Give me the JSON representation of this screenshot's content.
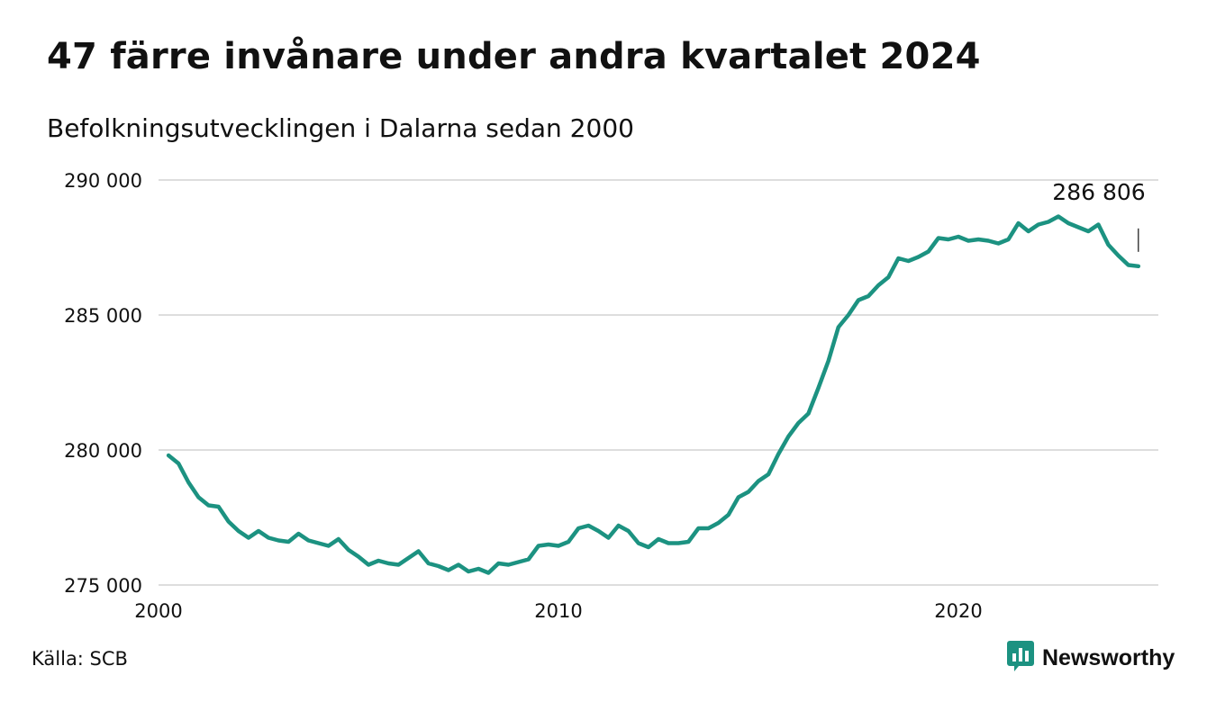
{
  "header": {
    "title": "47 färre invånare under andra kvartalet 2024",
    "subtitle": "Befolkningsutvecklingen i Dalarna sedan 2000"
  },
  "footer": {
    "source": "Källa: SCB",
    "brand": "Newsworthy",
    "brand_icon": "bar-chart-speech-bubble-icon"
  },
  "colors": {
    "line": "#1c9281",
    "grid": "#dedede",
    "text": "#111111"
  },
  "chart_data": {
    "type": "line",
    "title": "47 färre invånare under andra kvartalet 2024",
    "subtitle": "Befolkningsutvecklingen i Dalarna sedan 2000",
    "xlabel": "",
    "ylabel": "",
    "ylim": [
      275000,
      290000
    ],
    "xlim": [
      2000,
      2025
    ],
    "grid": true,
    "y_ticks": [
      275000,
      280000,
      285000,
      290000
    ],
    "y_tick_labels": [
      "275 000",
      "280 000",
      "285 000",
      "290 000"
    ],
    "x_ticks": [
      2000,
      2010,
      2020
    ],
    "x_tick_labels": [
      "2000",
      "2010",
      "2020"
    ],
    "annotation": {
      "text": "286 806",
      "value": 286806
    },
    "series": [
      {
        "x": [
          2000.25,
          2000.5,
          2000.75,
          2001,
          2001.25,
          2001.5,
          2001.75,
          2002,
          2002.25,
          2002.5,
          2002.75,
          2003,
          2003.25,
          2003.5,
          2003.75,
          2004,
          2004.25,
          2004.5,
          2004.75,
          2005,
          2005.25,
          2005.5,
          2005.75,
          2006,
          2006.25,
          2006.5,
          2006.75,
          2007,
          2007.25,
          2007.5,
          2007.75,
          2008,
          2008.25,
          2008.5,
          2008.75,
          2009,
          2009.25,
          2009.5,
          2009.75,
          2010,
          2010.25,
          2010.5,
          2010.75,
          2011,
          2011.25,
          2011.5,
          2011.75,
          2012,
          2012.25,
          2012.5,
          2012.75,
          2013,
          2013.25,
          2013.5,
          2013.75,
          2014,
          2014.25,
          2014.5,
          2014.75,
          2015,
          2015.25,
          2015.5,
          2015.75,
          2016,
          2016.25,
          2016.5,
          2016.75,
          2017,
          2017.25,
          2017.5,
          2017.75,
          2018,
          2018.25,
          2018.5,
          2018.75,
          2019,
          2019.25,
          2019.5,
          2019.75,
          2020,
          2020.25,
          2020.5,
          2020.75,
          2021,
          2021.25,
          2021.5,
          2021.75,
          2022,
          2022.25,
          2022.5,
          2022.75,
          2023,
          2023.25,
          2023.5,
          2023.75,
          2024,
          2024.25,
          2024.5
        ],
        "values": [
          279800,
          279500,
          278800,
          278250,
          277950,
          277900,
          277350,
          277000,
          276750,
          277000,
          276750,
          276650,
          276600,
          276900,
          276650,
          276550,
          276450,
          276700,
          276300,
          276050,
          275750,
          275900,
          275800,
          275750,
          276000,
          276250,
          275800,
          275700,
          275550,
          275750,
          275500,
          275600,
          275450,
          275800,
          275750,
          275850,
          275950,
          276450,
          276500,
          276450,
          276600,
          277100,
          277200,
          277000,
          276750,
          277200,
          277000,
          276550,
          276400,
          276700,
          276550,
          276550,
          276600,
          277100,
          277100,
          277300,
          277600,
          278250,
          278450,
          278850,
          279100,
          279850,
          280500,
          281000,
          281350,
          282300,
          283300,
          284550,
          285000,
          285550,
          285700,
          286100,
          286400,
          287100,
          287000,
          287150,
          287350,
          287850,
          287800,
          287900,
          287750,
          287800,
          287750,
          287650,
          287800,
          288400,
          288100,
          288350,
          288450,
          288650,
          288400,
          288250,
          288100,
          288350,
          287600,
          287200,
          286850,
          286806
        ]
      }
    ]
  }
}
